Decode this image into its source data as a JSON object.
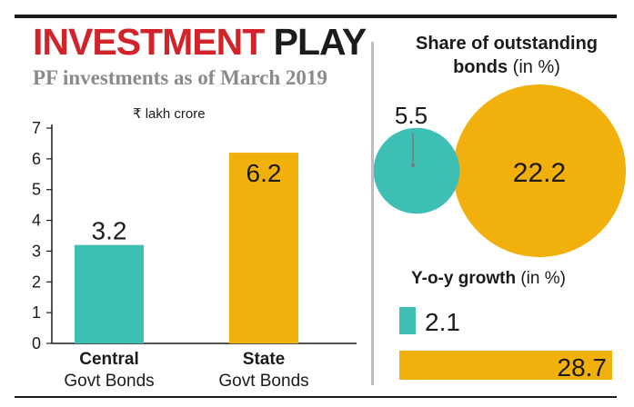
{
  "header": {
    "title_part1": "INVESTMENT",
    "title_part2": "PLAY",
    "subtitle": "PF investments as of March 2019"
  },
  "colors": {
    "teal": "#3dbfb4",
    "gold": "#f2b00c",
    "title_red": "#d2232a",
    "text_dark": "#1b1b1b",
    "subtitle_gray": "#8a8a8a",
    "divider_gray": "#bdbdbd"
  },
  "chart_data": [
    {
      "type": "bar",
      "unit_label": "₹ lakh crore",
      "categories": [
        {
          "line1": "Central",
          "line2": "Govt Bonds"
        },
        {
          "line1": "State",
          "line2": "Govt Bonds"
        }
      ],
      "values": [
        3.2,
        6.2
      ],
      "value_labels": [
        "3.2",
        "6.2"
      ],
      "colors": [
        "teal",
        "gold"
      ],
      "ylim": [
        0,
        7
      ],
      "yticks": [
        0,
        1,
        2,
        3,
        4,
        5,
        6,
        7
      ],
      "grid": false
    },
    {
      "type": "bubble",
      "title_bold": "Share of outstanding",
      "title_bold2": "bonds",
      "title_unit": "(in %)",
      "values": [
        5.5,
        22.2
      ],
      "value_labels": [
        "5.5",
        "22.2"
      ],
      "colors": [
        "teal",
        "gold"
      ]
    },
    {
      "type": "bar",
      "orientation": "horizontal",
      "title_bold": "Y-o-y growth",
      "title_unit": "(in %)",
      "values": [
        2.1,
        28.7
      ],
      "value_labels": [
        "2.1",
        "28.7"
      ],
      "colors": [
        "teal",
        "gold"
      ]
    }
  ]
}
